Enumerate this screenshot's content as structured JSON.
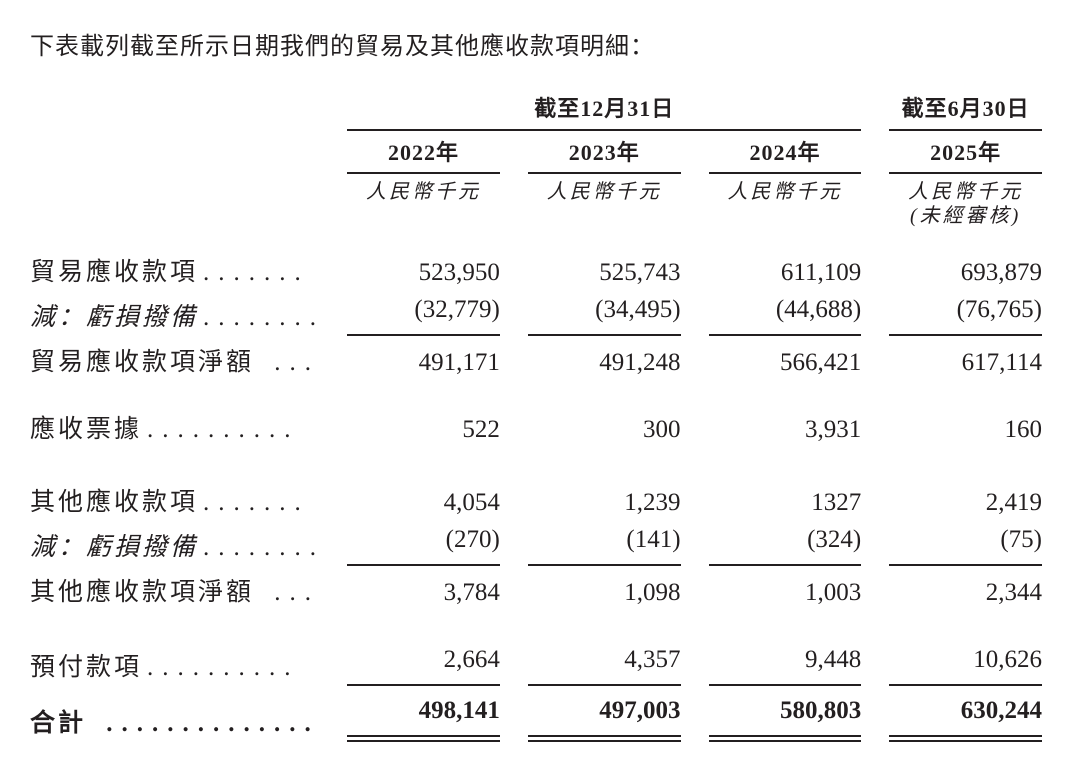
{
  "intro": {
    "text": "下表載列截至所示日期我們的貿易及其他應收款項明細："
  },
  "colors": {
    "text": "#231f20",
    "rule": "#231f20",
    "background": "#ffffff"
  },
  "table": {
    "header": {
      "group_dec31": "截至12月31日",
      "group_jun30": "截至6月30日",
      "years": [
        "2022年",
        "2023年",
        "2024年",
        "2025年"
      ],
      "unit": "人民幣千元",
      "unaudited": "(未經審核)"
    },
    "rows": [
      {
        "label": "貿易應收款項",
        "leader": ".......",
        "values": [
          "523,950",
          "525,743",
          "611,109",
          "693,879"
        ]
      },
      {
        "label": "減：虧損撥備",
        "leader": "........",
        "values": [
          "(32,779)",
          "(34,495)",
          "(44,688)",
          "(76,765)"
        ]
      },
      {
        "label": "貿易應收款項淨額",
        "leader": " ...",
        "values": [
          "491,171",
          "491,248",
          "566,421",
          "617,114"
        ]
      },
      {
        "label": "應收票據",
        "leader": "..........",
        "values": [
          "522",
          "300",
          "3,931",
          "160"
        ]
      },
      {
        "label": "其他應收款項",
        "leader": ".......",
        "values": [
          "4,054",
          "1,239",
          "1327",
          "2,419"
        ]
      },
      {
        "label": "減：虧損撥備",
        "leader": "........",
        "values": [
          "(270)",
          "(141)",
          "(324)",
          "(75)"
        ]
      },
      {
        "label": "其他應收款項淨額",
        "leader": " ...",
        "values": [
          "3,784",
          "1,098",
          "1,003",
          "2,344"
        ]
      },
      {
        "label": "預付款項",
        "leader": "..........",
        "values": [
          "2,664",
          "4,357",
          "9,448",
          "10,626"
        ]
      },
      {
        "label": "合計",
        "leader": " ..............",
        "values": [
          "498,141",
          "497,003",
          "580,803",
          "630,244"
        ]
      }
    ]
  }
}
